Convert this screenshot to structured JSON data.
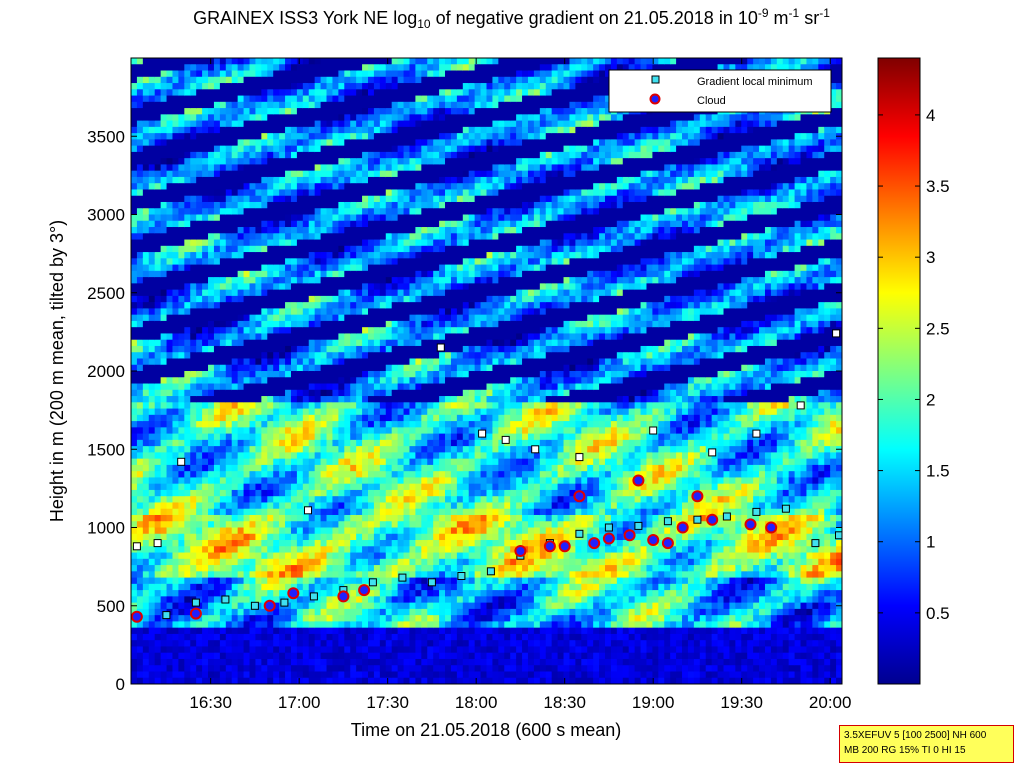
{
  "title": {
    "prefix": "GRAINEX ISS3 York NE log",
    "sub": "10",
    "mid1": " of negative gradient on 21.05.2018 in 10",
    "sup1": "-9",
    "mid2": " m",
    "sup2": "-1",
    "mid3": " sr",
    "sup3": "-1"
  },
  "stamp": {
    "line1": "3.5XEFUV 5 [100 2500] NH 600",
    "line2": "MB 200 RG 15% TI 0 HI 15"
  },
  "chart_data": {
    "type": "heatmap",
    "title": "GRAINEX ISS3 York NE log10 of negative gradient on 21.05.2018 in 10-9 m-1 sr-1",
    "xlabel": "Time on 21.05.2018 (600 s mean)",
    "ylabel": "Height in m (200 m mean, tilted by 3°)",
    "x_units": "time (HH:MM)",
    "xlim": [
      "16:03",
      "20:04"
    ],
    "ylim": [
      0,
      4000
    ],
    "x_ticks": [
      "16:30",
      "17:00",
      "17:30",
      "18:00",
      "18:30",
      "19:00",
      "19:30",
      "20:00"
    ],
    "y_ticks": [
      0,
      500,
      1000,
      1500,
      2000,
      2500,
      3000,
      3500
    ],
    "colorbar": {
      "colormap": "jet",
      "range": [
        0,
        4.4
      ],
      "ticks": [
        "0.5",
        "1",
        "1.5",
        "2",
        "2.5",
        "3",
        "3.5",
        "4"
      ]
    },
    "legend": {
      "position": "top-right",
      "entries": [
        {
          "name": "Gradient local minimum",
          "marker": "square",
          "color": "#40e0f0"
        },
        {
          "name": "Cloud",
          "marker": "circle",
          "color": "#2020ff",
          "edge": "#e00000"
        }
      ]
    },
    "layers": [
      {
        "height_from": 0,
        "height_to": 350,
        "level": 0.3
      },
      {
        "height_from": 350,
        "height_to": 700,
        "level": 1.5
      },
      {
        "height_from": 700,
        "height_to": 1100,
        "level": 2.2
      },
      {
        "height_from": 1100,
        "height_to": 1800,
        "level": 1.8
      },
      {
        "height_from": 1800,
        "height_to": 4000,
        "level": 1.2
      }
    ],
    "series": [
      {
        "name": "Gradient local minimum",
        "x": [
          "16:05",
          "16:15",
          "16:25",
          "16:35",
          "16:45",
          "16:55",
          "17:05",
          "17:15",
          "17:25",
          "17:35",
          "17:45",
          "17:55",
          "18:05",
          "18:15",
          "18:25",
          "18:35",
          "18:45",
          "18:55",
          "19:05",
          "19:15",
          "19:25",
          "19:35",
          "19:45",
          "19:55",
          "20:03"
        ],
        "y": [
          430,
          440,
          520,
          540,
          500,
          520,
          560,
          600,
          650,
          680,
          650,
          690,
          720,
          820,
          900,
          960,
          1000,
          1010,
          1040,
          1050,
          1070,
          1100,
          1120,
          900,
          950
        ]
      },
      {
        "name": "Gradient local minimum (upper)",
        "x": [
          "16:05",
          "16:12",
          "16:20",
          "17:03",
          "17:48",
          "18:02",
          "18:10",
          "18:20",
          "18:35",
          "19:00",
          "19:20",
          "19:35",
          "19:50",
          "20:02"
        ],
        "y": [
          880,
          900,
          1420,
          1110,
          2150,
          1600,
          1560,
          1500,
          1450,
          1620,
          1480,
          1600,
          1780,
          2240
        ]
      },
      {
        "name": "Cloud",
        "x": [
          "16:05",
          "16:25",
          "16:50",
          "16:58",
          "17:15",
          "17:22",
          "18:15",
          "18:25",
          "18:30",
          "18:35",
          "18:40",
          "18:45",
          "18:52",
          "18:55",
          "19:00",
          "19:05",
          "19:10",
          "19:15",
          "19:20",
          "19:33",
          "19:40"
        ],
        "y": [
          430,
          450,
          500,
          580,
          560,
          600,
          850,
          880,
          880,
          1200,
          900,
          930,
          950,
          1300,
          920,
          900,
          1000,
          1200,
          1050,
          1020,
          1000
        ]
      }
    ]
  }
}
